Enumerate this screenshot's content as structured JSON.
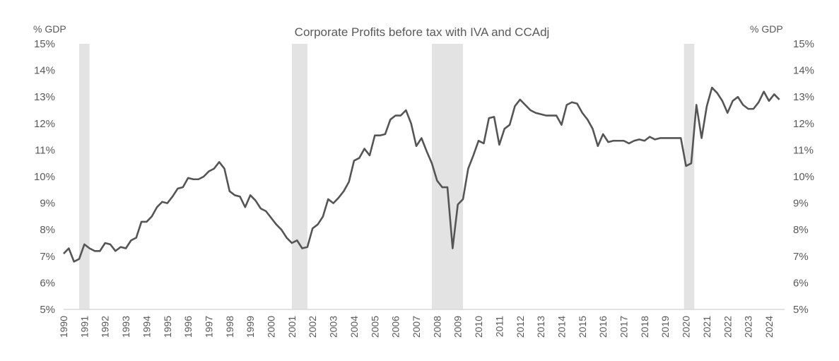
{
  "chart_data": {
    "type": "line",
    "title": "Corporate Profits before tax with IVA and CCAdj",
    "ylabel_left": "% GDP",
    "ylabel_right": "% GDP",
    "ylim": [
      5,
      15
    ],
    "yticks": [
      "5%",
      "6%",
      "7%",
      "8%",
      "9%",
      "10%",
      "11%",
      "12%",
      "13%",
      "14%",
      "15%"
    ],
    "xlim": [
      1990,
      2024.75
    ],
    "xticks": [
      "1990",
      "1991",
      "1992",
      "1993",
      "1994",
      "1995",
      "1996",
      "1997",
      "1998",
      "1999",
      "2000",
      "2001",
      "2002",
      "2003",
      "2004",
      "2005",
      "2006",
      "2007",
      "2008",
      "2009",
      "2010",
      "2011",
      "2012",
      "2013",
      "2014",
      "2015",
      "2016",
      "2017",
      "2018",
      "2019",
      "2020",
      "2021",
      "2022",
      "2023",
      "2024"
    ],
    "grid": false,
    "colors": {
      "line": "#555555",
      "recession": "#e3e3e3",
      "text": "#595959",
      "baseline": "#d9d9d9"
    },
    "recessions": [
      {
        "start": 1990.75,
        "end": 1991.25
      },
      {
        "start": 2001.0,
        "end": 2001.75
      },
      {
        "start": 2007.75,
        "end": 2009.25
      },
      {
        "start": 2019.9,
        "end": 2020.4
      }
    ],
    "series": [
      {
        "x": [
          1990.0,
          1990.25,
          1990.5,
          1990.75,
          1991.0,
          1991.25,
          1991.5,
          1991.75,
          1992.0,
          1992.25,
          1992.5,
          1992.75,
          1993.0,
          1993.25,
          1993.5,
          1993.75,
          1994.0,
          1994.25,
          1994.5,
          1994.75,
          1995.0,
          1995.25,
          1995.5,
          1995.75,
          1996.0,
          1996.25,
          1996.5,
          1996.75,
          1997.0,
          1997.25,
          1997.5,
          1997.75,
          1998.0,
          1998.25,
          1998.5,
          1998.75,
          1999.0,
          1999.25,
          1999.5,
          1999.75,
          2000.0,
          2000.25,
          2000.5,
          2000.75,
          2001.0,
          2001.25,
          2001.5,
          2001.75,
          2002.0,
          2002.25,
          2002.5,
          2002.75,
          2003.0,
          2003.25,
          2003.5,
          2003.75,
          2004.0,
          2004.25,
          2004.5,
          2004.75,
          2005.0,
          2005.25,
          2005.5,
          2005.75,
          2006.0,
          2006.25,
          2006.5,
          2006.75,
          2007.0,
          2007.25,
          2007.5,
          2007.75,
          2008.0,
          2008.25,
          2008.5,
          2008.75,
          2009.0,
          2009.25,
          2009.5,
          2009.75,
          2010.0,
          2010.25,
          2010.5,
          2010.75,
          2011.0,
          2011.25,
          2011.5,
          2011.75,
          2012.0,
          2012.25,
          2012.5,
          2012.75,
          2013.0,
          2013.25,
          2013.5,
          2013.75,
          2014.0,
          2014.25,
          2014.5,
          2014.75,
          2015.0,
          2015.25,
          2015.5,
          2015.75,
          2016.0,
          2016.25,
          2016.5,
          2016.75,
          2017.0,
          2017.25,
          2017.5,
          2017.75,
          2018.0,
          2018.25,
          2018.5,
          2018.75,
          2019.0,
          2019.25,
          2019.5,
          2019.75,
          2020.0,
          2020.25,
          2020.5,
          2020.75,
          2021.0,
          2021.25,
          2021.5,
          2021.75,
          2022.0,
          2022.25,
          2022.5,
          2022.75,
          2023.0,
          2023.25,
          2023.5,
          2023.75,
          2024.0,
          2024.25,
          2024.5
        ],
        "values": [
          7.1,
          7.3,
          6.8,
          6.9,
          7.45,
          7.3,
          7.2,
          7.2,
          7.5,
          7.45,
          7.2,
          7.35,
          7.3,
          7.6,
          7.7,
          8.3,
          8.3,
          8.5,
          8.85,
          9.05,
          9.0,
          9.25,
          9.55,
          9.6,
          9.95,
          9.9,
          9.9,
          10.0,
          10.2,
          10.3,
          10.55,
          10.3,
          9.45,
          9.3,
          9.25,
          8.85,
          9.3,
          9.1,
          8.8,
          8.7,
          8.45,
          8.2,
          8.0,
          7.7,
          7.5,
          7.6,
          7.3,
          7.35,
          8.05,
          8.2,
          8.5,
          9.15,
          9.0,
          9.2,
          9.45,
          9.8,
          10.6,
          10.7,
          11.05,
          10.8,
          11.55,
          11.55,
          11.6,
          12.15,
          12.3,
          12.3,
          12.5,
          12.0,
          11.15,
          11.45,
          10.95,
          10.5,
          9.85,
          9.6,
          9.6,
          7.3,
          8.95,
          9.15,
          10.3,
          10.8,
          11.35,
          11.25,
          12.2,
          12.25,
          11.2,
          11.8,
          11.95,
          12.65,
          12.9,
          12.7,
          12.5,
          12.4,
          12.35,
          12.3,
          12.3,
          12.3,
          11.95,
          12.7,
          12.8,
          12.75,
          12.4,
          12.15,
          11.8,
          11.15,
          11.6,
          11.3,
          11.35,
          11.35,
          11.35,
          11.25,
          11.35,
          11.4,
          11.35,
          11.5,
          11.4,
          11.45,
          11.45,
          11.45,
          11.45,
          11.45,
          10.4,
          10.5,
          12.7,
          11.45,
          12.65,
          13.35,
          13.15,
          12.85,
          12.4,
          12.85,
          13.0,
          12.7,
          12.55,
          12.55,
          12.8,
          13.2,
          12.85,
          13.1,
          12.9
        ]
      }
    ]
  }
}
